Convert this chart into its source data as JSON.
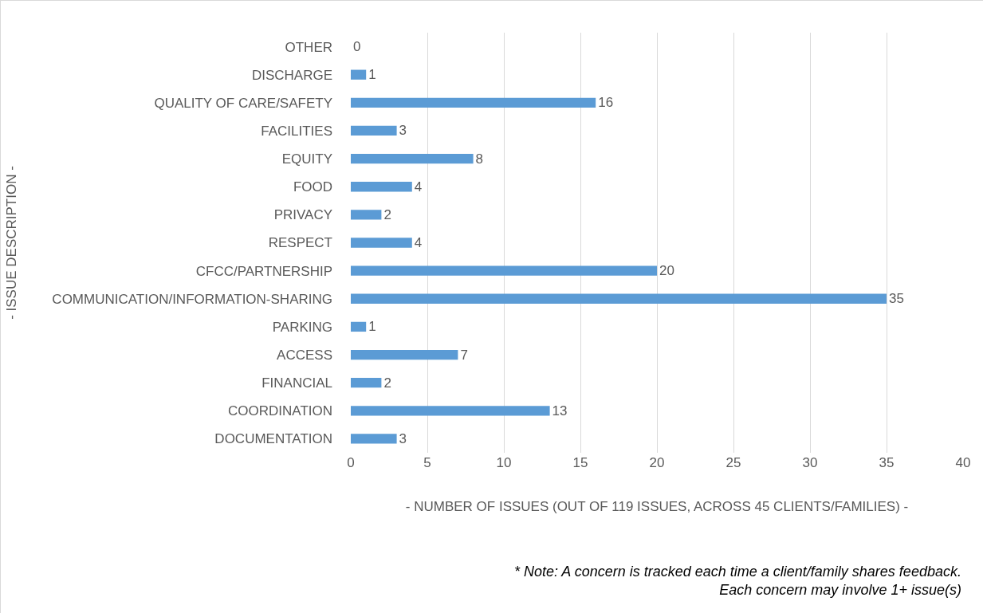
{
  "chart_data": {
    "type": "bar",
    "orientation": "horizontal",
    "categories": [
      "OTHER",
      "DISCHARGE",
      "QUALITY OF CARE/SAFETY",
      "FACILITIES",
      "EQUITY",
      "FOOD",
      "PRIVACY",
      "RESPECT",
      "CFCC/PARTNERSHIP",
      "COMMUNICATION/INFORMATION-SHARING",
      "PARKING",
      "ACCESS",
      "FINANCIAL",
      "COORDINATION",
      "DOCUMENTATION"
    ],
    "values": [
      0,
      1,
      16,
      3,
      8,
      4,
      2,
      4,
      20,
      35,
      1,
      7,
      2,
      13,
      3
    ],
    "color": "#5b9bd5",
    "data_labels": true,
    "xlim": [
      0,
      40
    ],
    "xticks": [
      0,
      5,
      10,
      15,
      20,
      25,
      30,
      35,
      40
    ],
    "grid": "x",
    "legend": false,
    "xlabel": "- NUMBER OF ISSUES (OUT OF 119 ISSUES, ACROSS 45 CLIENTS/FAMILIES) -",
    "ylabel": "- ISSUE DESCRIPTION -",
    "annotations": [
      "* Note: A concern is tracked each time a client/family shares feedback.\nEach concern may involve 1+ issue(s)"
    ]
  }
}
